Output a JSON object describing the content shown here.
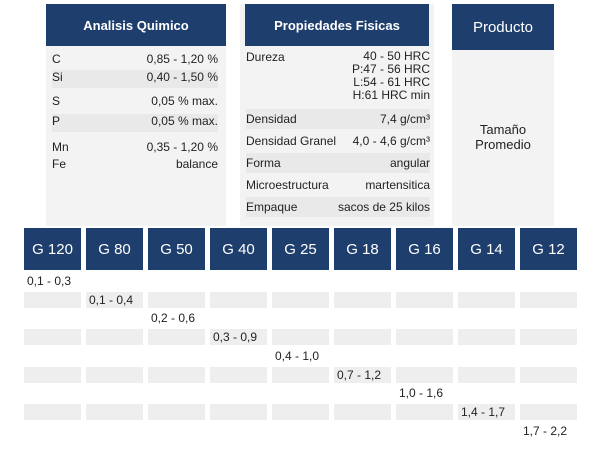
{
  "chemical": {
    "title": "Analisis Quimico",
    "rows": [
      {
        "el": "C",
        "val": "0,85 - 1,20 %"
      },
      {
        "el": "Si",
        "val": "0,40 - 1,50 %"
      },
      {
        "el": "S",
        "val": "0,05 % max."
      },
      {
        "el": "P",
        "val": "0,05  % max."
      },
      {
        "el": "Mn",
        "val": "0,35 - 1,20 %"
      },
      {
        "el": "Fe",
        "val": "balance"
      }
    ]
  },
  "physical": {
    "title": "Propiedades Fisicas",
    "dureza_label": "Dureza",
    "dureza_lines": [
      "40 - 50 HRC",
      "P:47 - 56 HRC",
      "L:54 - 61 HRC",
      "H:61 HRC min"
    ],
    "rows": [
      {
        "label": "Densidad",
        "value": "7,4 g/cm³"
      },
      {
        "label": "Densidad Granel",
        "value": "4,0 - 4,6 g/cm³"
      },
      {
        "label": "Forma",
        "value": "angular"
      },
      {
        "label": "Microestructura",
        "value": "martensitica"
      },
      {
        "label": "Empaque",
        "value": "sacos de 25 kilos"
      }
    ]
  },
  "product": {
    "title": "Producto",
    "line1": "Tamaño",
    "line2": "Promedio"
  },
  "grades": [
    "G 120",
    "G 80",
    "G 50",
    "G 40",
    "G 25",
    "G 18",
    "G 16",
    "G 14",
    "G 12"
  ],
  "ranges": [
    "0,1 - 0,3",
    "0,1 - 0,4",
    "0,2 - 0,6",
    "0,3 - 0,9",
    "0,4 - 1,0",
    "0,7 - 1,2",
    "1,0 - 1,6",
    "1,4 - 1,7",
    "1,7 - 2,2"
  ]
}
